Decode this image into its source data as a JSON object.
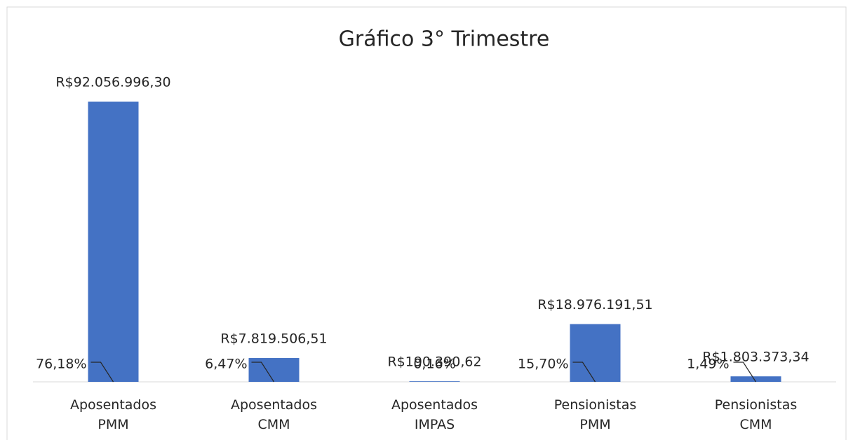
{
  "chart_data": {
    "type": "bar",
    "title": "Gráfico 3° Trimestre",
    "categories": [
      "Aposentados PMM",
      "Aposentados CMM",
      "Aposentados IMPAS",
      "Pensionistas PMM",
      "Pensionistas CMM"
    ],
    "values": [
      92056996.3,
      7819506.51,
      190390.62,
      18976191.51,
      1803373.34
    ],
    "value_labels": [
      "R$92.056.996,30",
      "R$7.819.506,51",
      "R$190.390,62",
      "R$18.976.191,51",
      "R$1.803.373,34"
    ],
    "percentages": [
      76.18,
      6.47,
      0.16,
      15.7,
      1.49
    ],
    "percentage_labels": [
      "76,18%",
      "6,47%",
      "0,16%",
      "15,70%",
      "1,49%"
    ],
    "color": "#4472c4"
  }
}
